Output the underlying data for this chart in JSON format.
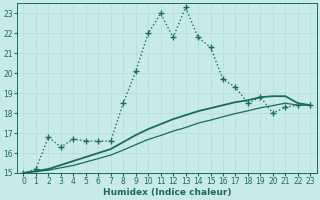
{
  "xlabel": "Humidex (Indice chaleur)",
  "bg_color": "#c8eaea",
  "grid_color": "#d4eeee",
  "line_color": "#1a6b5a",
  "xlim": [
    -0.5,
    23.5
  ],
  "ylim": [
    15,
    23.5
  ],
  "xticks": [
    0,
    1,
    2,
    3,
    4,
    5,
    6,
    7,
    8,
    9,
    10,
    11,
    12,
    13,
    14,
    15,
    16,
    17,
    18,
    19,
    20,
    21,
    22,
    23
  ],
  "yticks": [
    15,
    16,
    17,
    18,
    19,
    20,
    21,
    22,
    23
  ],
  "series": [
    {
      "x": [
        0,
        1,
        2,
        3,
        4,
        5,
        6,
        7,
        8,
        9,
        10,
        11,
        12,
        13,
        14,
        15,
        16,
        17,
        18,
        19,
        20,
        21,
        22,
        23
      ],
      "y": [
        15,
        15.2,
        16.8,
        16.3,
        16.7,
        16.6,
        16.6,
        16.6,
        18.5,
        20.1,
        22.0,
        23.0,
        21.8,
        23.3,
        21.8,
        21.3,
        19.7,
        19.3,
        18.5,
        18.8,
        18.0,
        18.3,
        18.4,
        18.4
      ],
      "marker": "+",
      "markersize": 4,
      "linewidth": 1.0,
      "linestyle": ":"
    },
    {
      "x": [
        0,
        1,
        2,
        3,
        4,
        5,
        6,
        7,
        8,
        9,
        10,
        11,
        12,
        13,
        14,
        15,
        16,
        17,
        18,
        19,
        20,
        21,
        22,
        23
      ],
      "y": [
        15.0,
        15.1,
        15.2,
        15.4,
        15.6,
        15.8,
        16.0,
        16.2,
        16.55,
        16.9,
        17.2,
        17.45,
        17.7,
        17.9,
        18.1,
        18.25,
        18.4,
        18.55,
        18.65,
        18.8,
        18.85,
        18.85,
        18.5,
        18.4
      ],
      "marker": null,
      "markersize": 0,
      "linewidth": 1.3,
      "linestyle": "-"
    },
    {
      "x": [
        0,
        1,
        2,
        3,
        4,
        5,
        6,
        7,
        8,
        9,
        10,
        11,
        12,
        13,
        14,
        15,
        16,
        17,
        18,
        19,
        20,
        21,
        22,
        23
      ],
      "y": [
        15.0,
        15.07,
        15.14,
        15.26,
        15.38,
        15.55,
        15.72,
        15.9,
        16.15,
        16.42,
        16.68,
        16.88,
        17.1,
        17.28,
        17.5,
        17.65,
        17.82,
        17.98,
        18.12,
        18.27,
        18.38,
        18.5,
        18.4,
        18.4
      ],
      "marker": null,
      "markersize": 0,
      "linewidth": 0.9,
      "linestyle": "-"
    }
  ]
}
